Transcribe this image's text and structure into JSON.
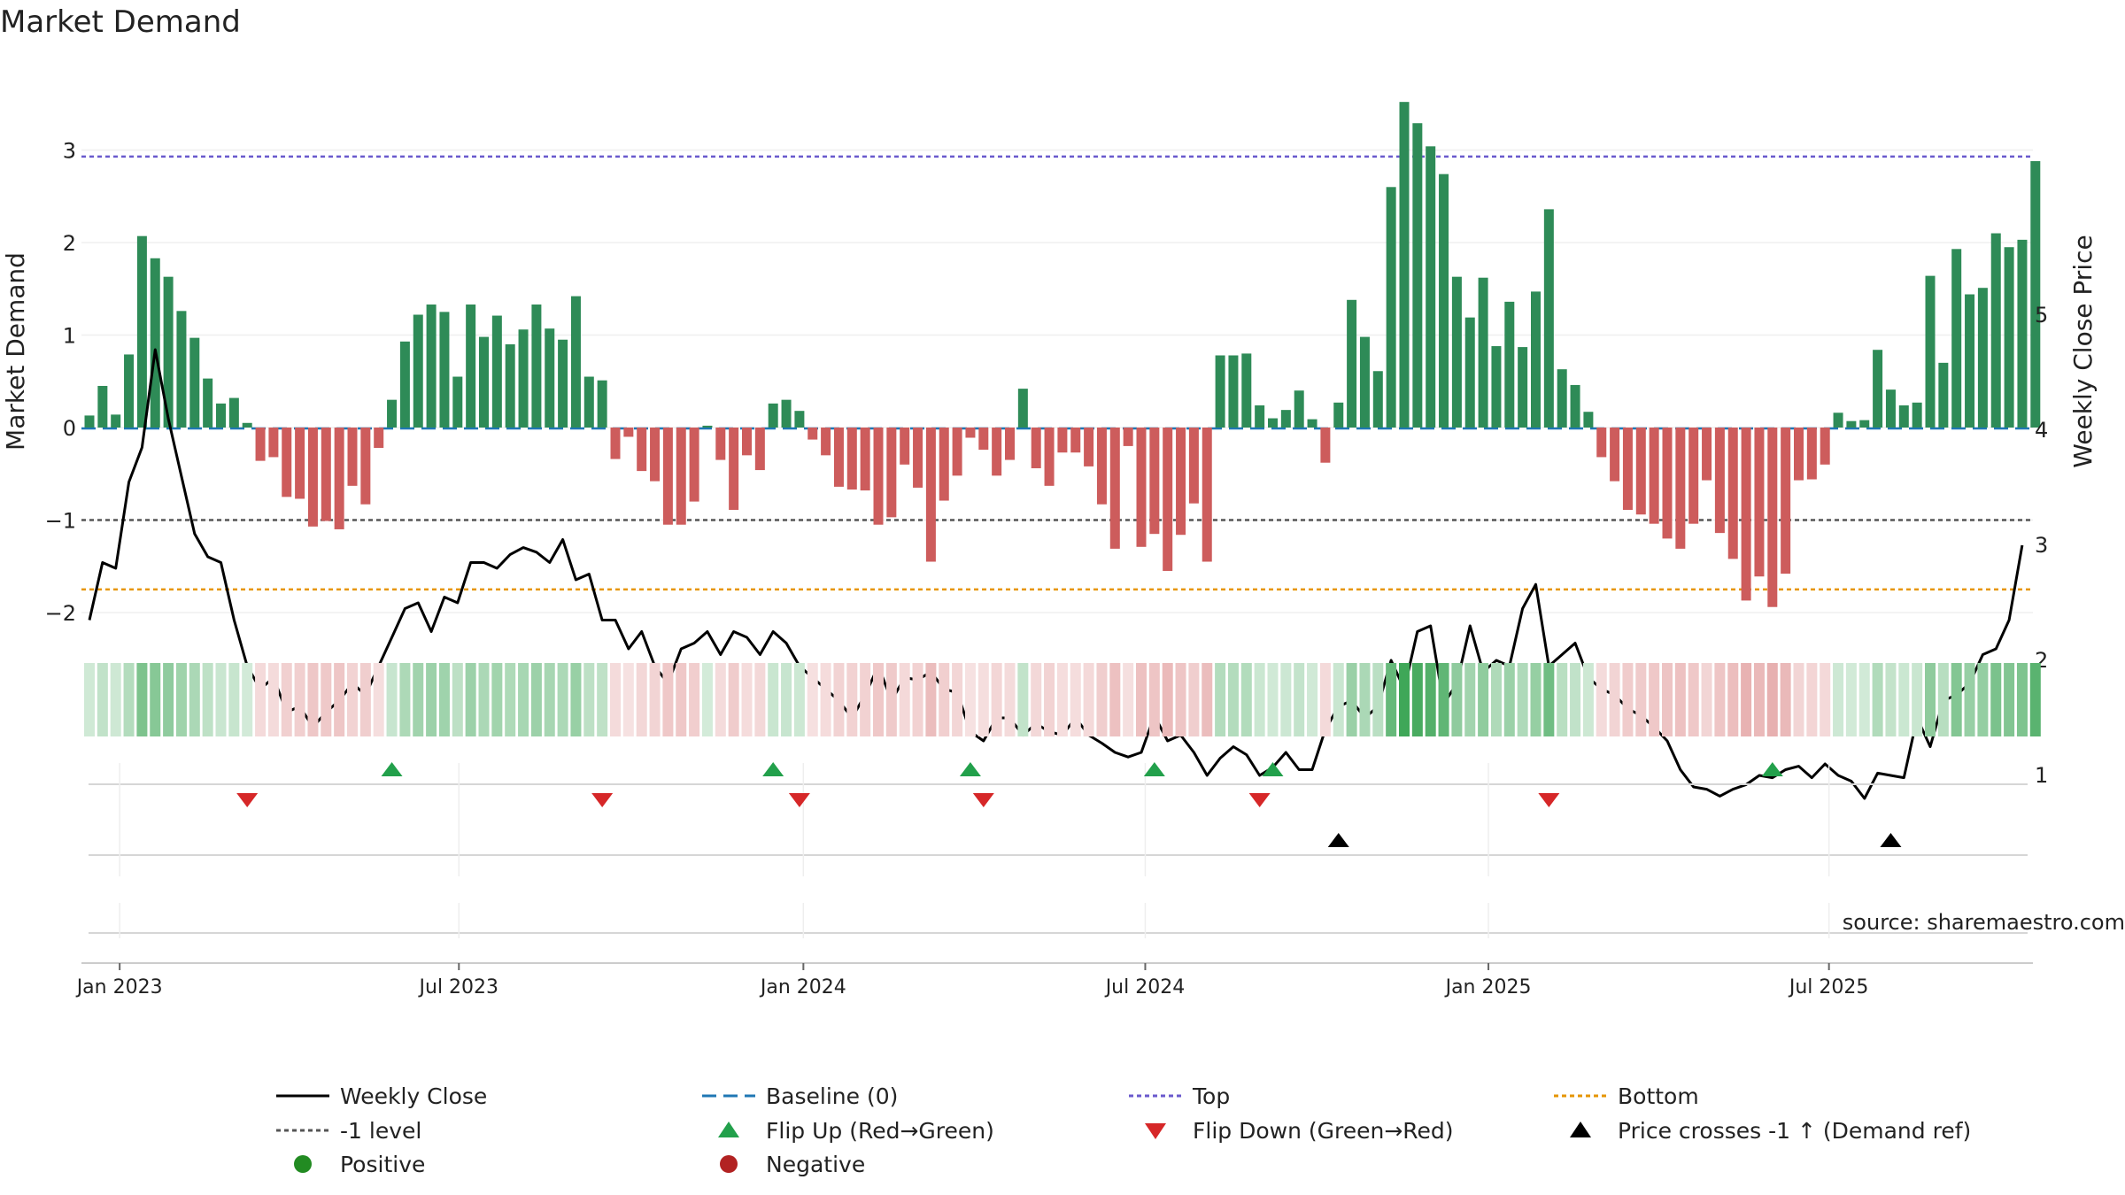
{
  "title": "Market Demand",
  "source": "source: sharemaestro.com",
  "colors": {
    "positive": "#2e8b57",
    "negative": "#cd5c5c",
    "close": "#000000",
    "baseline": "#1f77b4",
    "top": "#6a5acd",
    "minus1": "#555555",
    "bottom": "#e69500",
    "flip_up": "#22a04b",
    "flip_down": "#d62728",
    "cross": "#000000",
    "legend_positive": "#228b22",
    "legend_negative": "#b22222"
  },
  "chart_data": {
    "type": "bar",
    "title": "Market Demand",
    "ylabel": "Market Demand",
    "y2label": "Weekly Close Price",
    "ylim": [
      -2.25,
      3.8
    ],
    "y2lim": [
      0.25,
      5.5
    ],
    "yticks": [
      -2,
      -1,
      0,
      1,
      2,
      3
    ],
    "yticklabels": [
      "−2",
      "−1",
      "0",
      "1",
      "2",
      "3"
    ],
    "y2ticks": [
      1,
      2,
      3,
      4,
      5
    ],
    "y2ticklabels": [
      "1",
      "2",
      "3",
      "4",
      "5"
    ],
    "xticks": [
      {
        "week": 2.3,
        "label": "Jan 2023"
      },
      {
        "week": 28.1,
        "label": "Jul 2023"
      },
      {
        "week": 54.3,
        "label": "Jan 2024"
      },
      {
        "week": 80.3,
        "label": "Jul 2024"
      },
      {
        "week": 106.4,
        "label": "Jan 2025"
      },
      {
        "week": 132.3,
        "label": "Jul 2025"
      }
    ],
    "reference_lines": {
      "top": 2.93,
      "minus1_level": -1.0,
      "bottom": -1.75,
      "baseline": 0
    },
    "demand": [
      0.13,
      0.45,
      0.14,
      0.79,
      2.07,
      1.83,
      1.63,
      1.26,
      0.97,
      0.53,
      0.26,
      0.32,
      0.05,
      -0.36,
      -0.32,
      -0.75,
      -0.77,
      -1.07,
      -1.01,
      -1.1,
      -0.63,
      -0.83,
      -0.22,
      0.3,
      0.93,
      1.22,
      1.33,
      1.25,
      0.55,
      1.33,
      0.98,
      1.21,
      0.9,
      1.06,
      1.33,
      1.07,
      0.95,
      1.42,
      0.55,
      0.51,
      -0.34,
      -0.1,
      -0.47,
      -0.58,
      -1.05,
      -1.05,
      -0.8,
      0.02,
      -0.35,
      -0.89,
      -0.3,
      -0.46,
      0.26,
      0.3,
      0.18,
      -0.13,
      -0.3,
      -0.64,
      -0.67,
      -0.68,
      -1.05,
      -0.97,
      -0.4,
      -0.65,
      -1.45,
      -0.79,
      -0.52,
      -0.11,
      -0.24,
      -0.52,
      -0.35,
      0.42,
      -0.44,
      -0.63,
      -0.27,
      -0.27,
      -0.42,
      -0.83,
      -1.31,
      -0.2,
      -1.29,
      -1.15,
      -1.55,
      -1.16,
      -0.82,
      -1.45,
      0.78,
      0.78,
      0.8,
      0.24,
      0.1,
      0.19,
      0.4,
      0.09,
      -0.38,
      0.27,
      1.38,
      0.98,
      0.61,
      2.6,
      3.52,
      3.29,
      3.04,
      2.74,
      1.63,
      1.19,
      1.62,
      0.88,
      1.36,
      0.87,
      1.47,
      2.36,
      0.63,
      0.46,
      0.17,
      -0.32,
      -0.58,
      -0.89,
      -0.94,
      -1.04,
      -1.2,
      -1.31,
      -1.04,
      -0.57,
      -1.14,
      -1.42,
      -1.87,
      -1.61,
      -1.94,
      -1.58,
      -0.57,
      -0.56,
      -0.4,
      0.16,
      0.07,
      0.08,
      0.84,
      0.41,
      0.24,
      0.27,
      1.64,
      0.7,
      1.93,
      1.44,
      1.51,
      2.1,
      1.95,
      2.03,
      2.88
    ],
    "close": [
      2.35,
      2.85,
      2.8,
      3.55,
      3.85,
      4.7,
      4.1,
      3.6,
      3.1,
      2.9,
      2.85,
      2.35,
      1.95,
      1.75,
      1.85,
      1.55,
      1.6,
      1.42,
      1.55,
      1.65,
      1.8,
      1.7,
      1.95,
      2.2,
      2.45,
      2.5,
      2.25,
      2.55,
      2.5,
      2.85,
      2.85,
      2.8,
      2.92,
      2.98,
      2.94,
      2.85,
      3.05,
      2.7,
      2.75,
      2.35,
      2.35,
      2.1,
      2.25,
      1.95,
      1.8,
      2.1,
      2.15,
      2.25,
      2.05,
      2.25,
      2.2,
      2.05,
      2.25,
      2.15,
      1.95,
      1.85,
      1.75,
      1.65,
      1.5,
      1.7,
      1.95,
      1.65,
      1.85,
      1.83,
      1.9,
      1.75,
      1.72,
      1.38,
      1.3,
      1.5,
      1.5,
      1.35,
      1.45,
      1.38,
      1.35,
      1.5,
      1.35,
      1.28,
      1.2,
      1.16,
      1.2,
      1.52,
      1.3,
      1.35,
      1.2,
      1.0,
      1.15,
      1.25,
      1.18,
      1.0,
      1.07,
      1.2,
      1.05,
      1.05,
      1.4,
      1.6,
      1.65,
      1.5,
      1.6,
      2.0,
      1.75,
      2.25,
      2.3,
      1.62,
      1.8,
      2.3,
      1.9,
      2.0,
      1.95,
      2.45,
      2.66,
      1.95,
      2.05,
      2.15,
      1.85,
      1.75,
      1.7,
      1.58,
      1.52,
      1.42,
      1.3,
      1.05,
      0.9,
      0.88,
      0.82,
      0.88,
      0.92,
      1.0,
      0.98,
      1.05,
      1.08,
      0.98,
      1.1,
      1.0,
      0.95,
      0.8,
      1.02,
      1.0,
      0.98,
      1.5,
      1.25,
      1.65,
      1.7,
      1.8,
      2.05,
      2.1,
      2.35,
      3.0
    ],
    "flip_up_weeks": [
      23,
      52,
      67,
      81,
      90,
      128
    ],
    "flip_down_weeks": [
      12,
      39,
      54,
      68,
      89,
      111
    ],
    "cross_weeks": [
      95,
      137
    ],
    "legend_rows": [
      [
        {
          "label": "Weekly Close",
          "kind": "solid",
          "color": "#000000"
        },
        {
          "label": "Baseline (0)",
          "kind": "dashed",
          "color": "#1f77b4"
        },
        {
          "label": "Top",
          "kind": "dotted",
          "color": "#6a5acd"
        },
        {
          "label": "Bottom",
          "kind": "dotted",
          "color": "#e69500"
        }
      ],
      [
        {
          "label": "-1 level",
          "kind": "dotted",
          "color": "#555555"
        },
        {
          "label": "Flip Up (Red→Green)",
          "kind": "tri-up",
          "color": "#22a04b"
        },
        {
          "label": "Flip Down (Green→Red)",
          "kind": "tri-down",
          "color": "#d62728"
        },
        {
          "label": "Price crosses -1 ↑ (Demand ref)",
          "kind": "tri-up",
          "color": "#000000"
        }
      ],
      [
        {
          "label": "Positive",
          "kind": "dot",
          "color": "#228b22"
        },
        {
          "label": "Negative",
          "kind": "dot",
          "color": "#b22222"
        }
      ]
    ]
  }
}
